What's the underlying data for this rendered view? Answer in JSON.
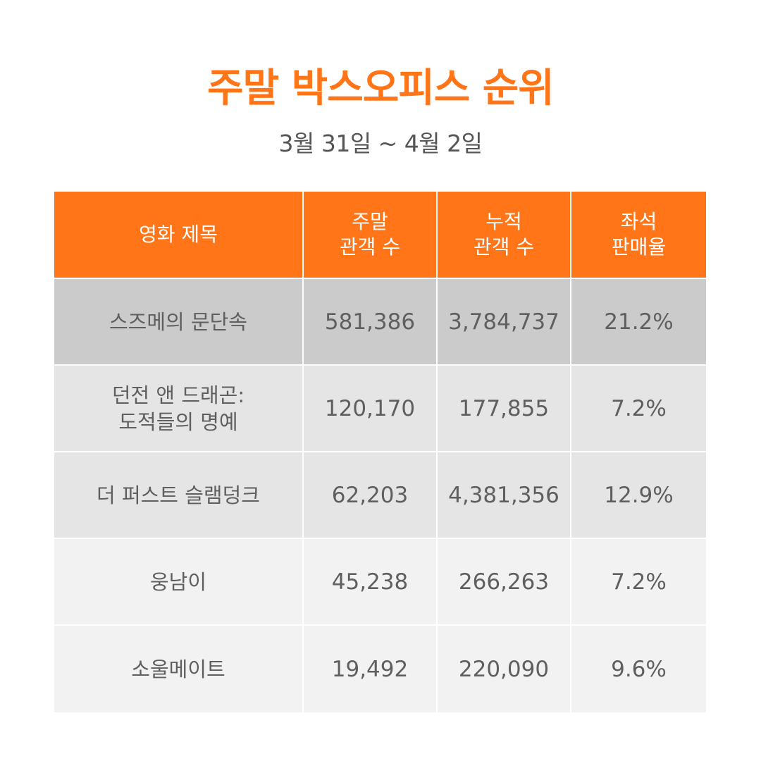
{
  "header": {
    "title": "주말 박스오피스 순위",
    "date_range": "3월 31일 ~ 4월 2일"
  },
  "colors": {
    "accent": "#ff7518",
    "row_top": "#cbcbcb",
    "row_mid": "#e5e5e5",
    "row_low": "#f2f2f2",
    "text": "#5f5f5f"
  },
  "table": {
    "columns": [
      "영화 제목",
      "주말\n관객 수",
      "누적\n관객 수",
      "좌석\n판매율"
    ],
    "rows": [
      {
        "title": "스즈메의 문단속",
        "weekend": "581,386",
        "cumulative": "3,784,737",
        "seat_rate": "21.2%"
      },
      {
        "title": "던전 앤 드래곤:\n도적들의 명예",
        "weekend": "120,170",
        "cumulative": "177,855",
        "seat_rate": "7.2%"
      },
      {
        "title": "더 퍼스트 슬램덩크",
        "weekend": "62,203",
        "cumulative": "4,381,356",
        "seat_rate": "12.9%"
      },
      {
        "title": "웅남이",
        "weekend": "45,238",
        "cumulative": "266,263",
        "seat_rate": "7.2%"
      },
      {
        "title": "소울메이트",
        "weekend": "19,492",
        "cumulative": "220,090",
        "seat_rate": "9.6%"
      }
    ]
  }
}
